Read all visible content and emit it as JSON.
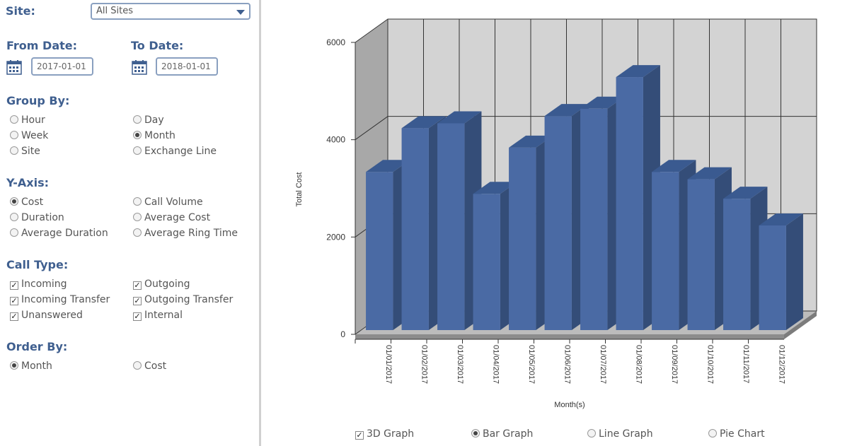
{
  "site": {
    "label": "Site:",
    "selected": "All Sites"
  },
  "dates": {
    "from_label": "From Date:",
    "from_value": "2017-01-01",
    "to_label": "To Date:",
    "to_value": "2018-01-01"
  },
  "group_by": {
    "label": "Group By:",
    "options": [
      {
        "label": "Hour",
        "checked": false
      },
      {
        "label": "Day",
        "checked": false
      },
      {
        "label": "Week",
        "checked": false
      },
      {
        "label": "Month",
        "checked": true
      },
      {
        "label": "Site",
        "checked": false
      },
      {
        "label": "Exchange Line",
        "checked": false
      }
    ]
  },
  "y_axis": {
    "label": "Y-Axis:",
    "options": [
      {
        "label": "Cost",
        "checked": true
      },
      {
        "label": "Call Volume",
        "checked": false
      },
      {
        "label": "Duration",
        "checked": false
      },
      {
        "label": "Average Cost",
        "checked": false
      },
      {
        "label": "Average Duration",
        "checked": false
      },
      {
        "label": "Average Ring Time",
        "checked": false
      }
    ]
  },
  "call_type": {
    "label": "Call Type:",
    "options": [
      {
        "label": "Incoming",
        "checked": true
      },
      {
        "label": "Outgoing",
        "checked": true
      },
      {
        "label": "Incoming Transfer",
        "checked": true
      },
      {
        "label": "Outgoing Transfer",
        "checked": true
      },
      {
        "label": "Unanswered",
        "checked": true
      },
      {
        "label": "Internal",
        "checked": true
      }
    ]
  },
  "order_by": {
    "label": "Order By:",
    "options": [
      {
        "label": "Month",
        "checked": true
      },
      {
        "label": "Cost",
        "checked": false
      }
    ]
  },
  "graph_controls": {
    "three_d": {
      "label": "3D Graph",
      "checked": true
    },
    "bar": {
      "label": "Bar Graph",
      "checked": true
    },
    "line": {
      "label": "Line Graph",
      "checked": false
    },
    "pie": {
      "label": "Pie Chart",
      "checked": false
    }
  },
  "colors": {
    "accent": "#3f5f8f",
    "bar_front": "#4a6aa4",
    "bar_top": "#3a5a90",
    "bar_side": "#344d78",
    "wall": "#d3d3d3"
  },
  "chart_data": {
    "type": "bar",
    "categories": [
      "01/01/2017",
      "01/02/2017",
      "01/03/2017",
      "01/04/2017",
      "01/05/2017",
      "01/06/2017",
      "01/07/2017",
      "01/08/2017",
      "01/09/2017",
      "01/10/2017",
      "01/11/2017",
      "01/12/2017"
    ],
    "values": [
      3250,
      4150,
      4250,
      2800,
      3750,
      4400,
      4550,
      5200,
      3250,
      3100,
      2700,
      2150
    ],
    "xlabel": "Month(s)",
    "ylabel": "Total Cost",
    "ylim": [
      0,
      6000
    ],
    "yticks": [
      "0",
      "2000",
      "4000",
      "6000"
    ],
    "grid": true,
    "three_d": true
  }
}
